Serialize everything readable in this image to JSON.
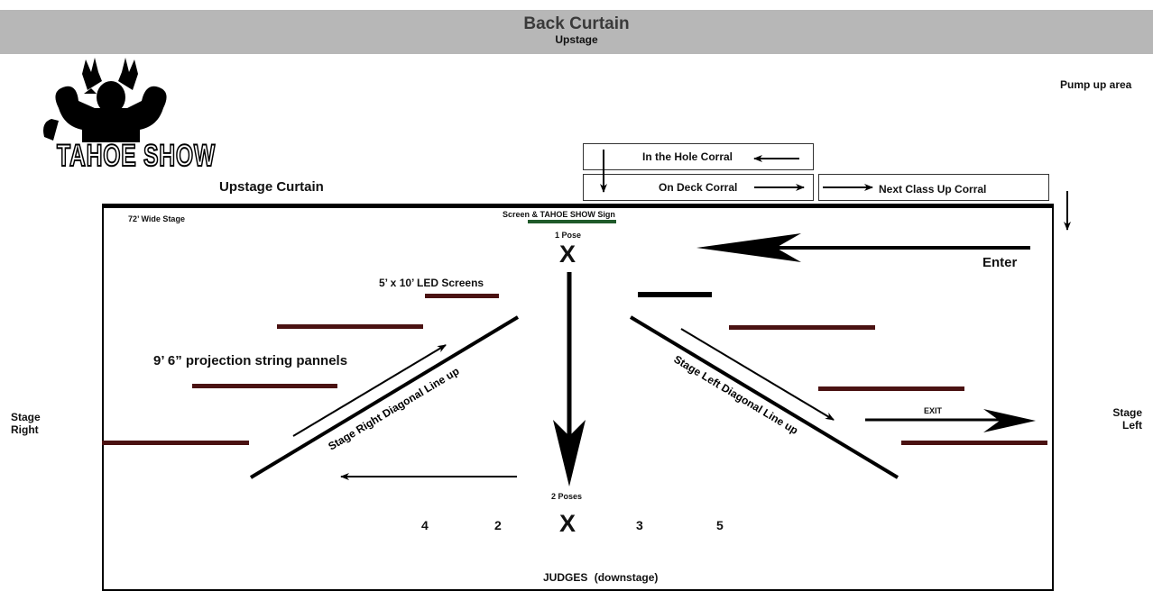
{
  "banner": {
    "title": "Back Curtain",
    "subtitle": "Upstage"
  },
  "logo": {
    "text": "TAHOE SHOW"
  },
  "labels": {
    "pump_up_area": "Pump up area",
    "upstage_curtain": "Upstage Curtain",
    "stage_width": "72’ Wide Stage",
    "screen_sign": "Screen & TAHOE SHOW Sign",
    "pose_one": "1 Pose",
    "pose_two": "2 Poses",
    "x_mark": "X",
    "enter": "Enter",
    "exit": "EXIT",
    "led_screens": "5’ x 10’ LED Screens",
    "projection_panels": "9’ 6” projection string pannels",
    "stage_right_line": "Stage Right Diagonal Line up",
    "stage_left_line": "Stage Left Diagonal Line up",
    "stage_right": "Stage Right",
    "stage_left": "Stage Left",
    "judges": "JUDGES",
    "downstage": "(downstage)"
  },
  "corrals": {
    "in_the_hole": "In the Hole Corral",
    "on_deck": "On Deck Corral",
    "next_class": "Next Class Up Corral"
  },
  "positions": [
    "4",
    "2",
    "3",
    "5"
  ],
  "colors": {
    "banner": "#b7b7b7",
    "panel": "#4a1212",
    "sign": "#1f5a2a",
    "stroke": "#000000"
  }
}
